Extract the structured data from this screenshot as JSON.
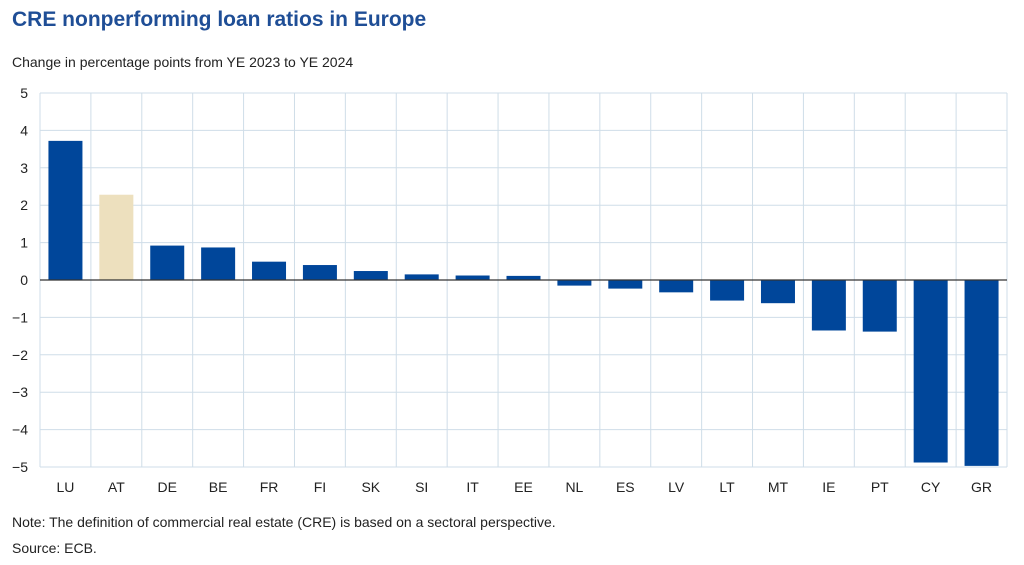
{
  "title": "CRE nonperforming loan ratios in Europe",
  "subtitle": "Change in percentage points from YE 2023 to YE 2024",
  "note": "Note: The definition of commercial real estate (CRE) is based on a sectoral perspective.",
  "source": "Source: ECB.",
  "colors": {
    "primary": "#00469a",
    "highlight": "#ede0be",
    "grid": "#cfdde8"
  },
  "chart_data": {
    "type": "bar",
    "title": "CRE nonperforming loan ratios in Europe",
    "ylabel": "Change in percentage points from YE 2023 to YE 2024",
    "xlabel": "",
    "ylim": [
      -5,
      5
    ],
    "yticks": [
      5,
      4,
      3,
      2,
      1,
      0,
      -1,
      -2,
      -3,
      -4,
      -5
    ],
    "ytick_labels": [
      "5",
      "4",
      "3",
      "2",
      "1",
      "0",
      "−1",
      "−2",
      "−3",
      "−4",
      "−5"
    ],
    "grid": true,
    "categories": [
      "LU",
      "AT",
      "DE",
      "BE",
      "FR",
      "FI",
      "SK",
      "SI",
      "IT",
      "EE",
      "NL",
      "ES",
      "LV",
      "LT",
      "MT",
      "IE",
      "PT",
      "CY",
      "GR"
    ],
    "values": [
      3.72,
      2.28,
      0.92,
      0.87,
      0.49,
      0.4,
      0.24,
      0.15,
      0.12,
      0.11,
      -0.15,
      -0.23,
      -0.33,
      -0.55,
      -0.62,
      -1.35,
      -1.38,
      -4.88,
      -4.97
    ],
    "highlighted": [
      "AT"
    ]
  }
}
